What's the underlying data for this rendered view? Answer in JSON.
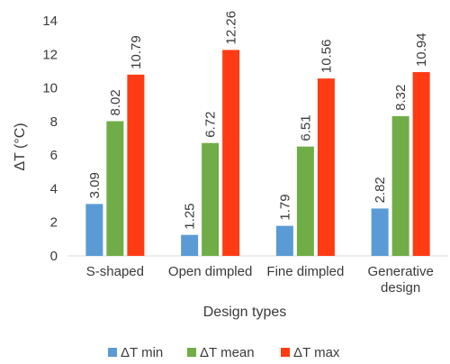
{
  "chart_data": {
    "type": "bar",
    "title": "",
    "xlabel": "Design types",
    "ylabel": "ΔT (°C)",
    "ylim": [
      0,
      14
    ],
    "yticks": [
      0,
      2,
      4,
      6,
      8,
      10,
      12,
      14
    ],
    "grid": false,
    "legend_position": "bottom",
    "categories": [
      [
        "S-shaped"
      ],
      [
        "Open dimpled"
      ],
      [
        "Fine dimpled"
      ],
      [
        "Generative",
        "design"
      ]
    ],
    "series": [
      {
        "name": "ΔT min",
        "color": "#5b9bd5",
        "values": [
          3.09,
          1.25,
          1.79,
          2.82
        ],
        "labels": [
          "3.09",
          "1.25",
          "1.79",
          "2.82"
        ]
      },
      {
        "name": "ΔT mean",
        "color": "#70ad47",
        "values": [
          8.02,
          6.72,
          6.51,
          8.32
        ],
        "labels": [
          "8.02",
          "6.72",
          "6.51",
          "8.32"
        ]
      },
      {
        "name": "ΔT max",
        "color": "#ff3b14",
        "values": [
          10.79,
          12.26,
          10.56,
          10.94
        ],
        "labels": [
          "10.79",
          "12.26",
          "10.56",
          "10.94"
        ]
      }
    ]
  }
}
